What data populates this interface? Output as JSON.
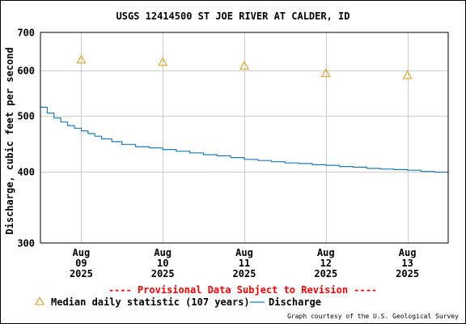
{
  "chart_data": {
    "type": "line",
    "title": "USGS 12414500 ST JOE RIVER AT CALDER, ID",
    "ylabel": "Discharge, cubic feet per second",
    "xlabel": "",
    "y_scale": "log",
    "ylim": [
      300,
      700
    ],
    "y_ticks": [
      300,
      400,
      500,
      600,
      700
    ],
    "x_range": [
      "2025-08-08 12:00",
      "2025-08-13 12:00"
    ],
    "x_ticks": [
      {
        "date": "2025-08-09",
        "label": [
          "Aug",
          "09",
          "2025"
        ]
      },
      {
        "date": "2025-08-10",
        "label": [
          "Aug",
          "10",
          "2025"
        ]
      },
      {
        "date": "2025-08-11",
        "label": [
          "Aug",
          "11",
          "2025"
        ]
      },
      {
        "date": "2025-08-12",
        "label": [
          "Aug",
          "12",
          "2025"
        ]
      },
      {
        "date": "2025-08-13",
        "label": [
          "Aug",
          "13",
          "2025"
        ]
      }
    ],
    "grid": true,
    "series": [
      {
        "name": "Discharge",
        "style": "line",
        "color": "#1a7fbf",
        "points": [
          [
            "2025-08-08 12:00",
            518
          ],
          [
            "2025-08-08 14:00",
            506
          ],
          [
            "2025-08-08 16:00",
            496
          ],
          [
            "2025-08-08 18:00",
            488
          ],
          [
            "2025-08-08 20:00",
            481
          ],
          [
            "2025-08-08 22:00",
            476
          ],
          [
            "2025-08-09 00:00",
            471
          ],
          [
            "2025-08-09 02:00",
            466
          ],
          [
            "2025-08-09 04:00",
            461
          ],
          [
            "2025-08-09 06:00",
            456
          ],
          [
            "2025-08-09 09:00",
            451
          ],
          [
            "2025-08-09 12:00",
            446
          ],
          [
            "2025-08-09 16:00",
            442
          ],
          [
            "2025-08-09 20:00",
            440
          ],
          [
            "2025-08-10 00:00",
            437
          ],
          [
            "2025-08-10 04:00",
            434
          ],
          [
            "2025-08-10 08:00",
            431
          ],
          [
            "2025-08-10 12:00",
            428
          ],
          [
            "2025-08-10 16:00",
            426
          ],
          [
            "2025-08-10 20:00",
            423
          ],
          [
            "2025-08-11 00:00",
            420
          ],
          [
            "2025-08-11 04:00",
            418
          ],
          [
            "2025-08-11 08:00",
            416
          ],
          [
            "2025-08-11 12:00",
            414
          ],
          [
            "2025-08-11 16:00",
            413
          ],
          [
            "2025-08-11 20:00",
            411
          ],
          [
            "2025-08-12 00:00",
            410
          ],
          [
            "2025-08-12 04:00",
            408
          ],
          [
            "2025-08-12 08:00",
            407
          ],
          [
            "2025-08-12 12:00",
            405
          ],
          [
            "2025-08-12 16:00",
            404
          ],
          [
            "2025-08-12 20:00",
            403
          ],
          [
            "2025-08-13 00:00",
            402
          ],
          [
            "2025-08-13 04:00",
            400
          ],
          [
            "2025-08-13 08:00",
            399
          ],
          [
            "2025-08-13 12:00",
            398
          ]
        ]
      },
      {
        "name": "Median daily statistic (107 years)",
        "style": "triangle-markers",
        "color": "#e89600",
        "points": [
          [
            "2025-08-09 00:00",
            627
          ],
          [
            "2025-08-10 00:00",
            621
          ],
          [
            "2025-08-11 00:00",
            612
          ],
          [
            "2025-08-12 00:00",
            594
          ],
          [
            "2025-08-13 00:00",
            589
          ]
        ]
      }
    ],
    "legend": [
      {
        "label": "Median daily statistic (107 years)",
        "symbol": "triangle",
        "color": "#e89600"
      },
      {
        "label": "Discharge",
        "symbol": "line",
        "color": "#1a7fbf"
      }
    ],
    "legend_position": "bottom",
    "provisional_note": "---- Provisional Data Subject to Revision ----",
    "credit": "Graph courtesy of the U.S. Geological Survey",
    "colors": {
      "provisional": "#ff0000",
      "grid": "#cccccc",
      "axis": "#000000"
    }
  }
}
